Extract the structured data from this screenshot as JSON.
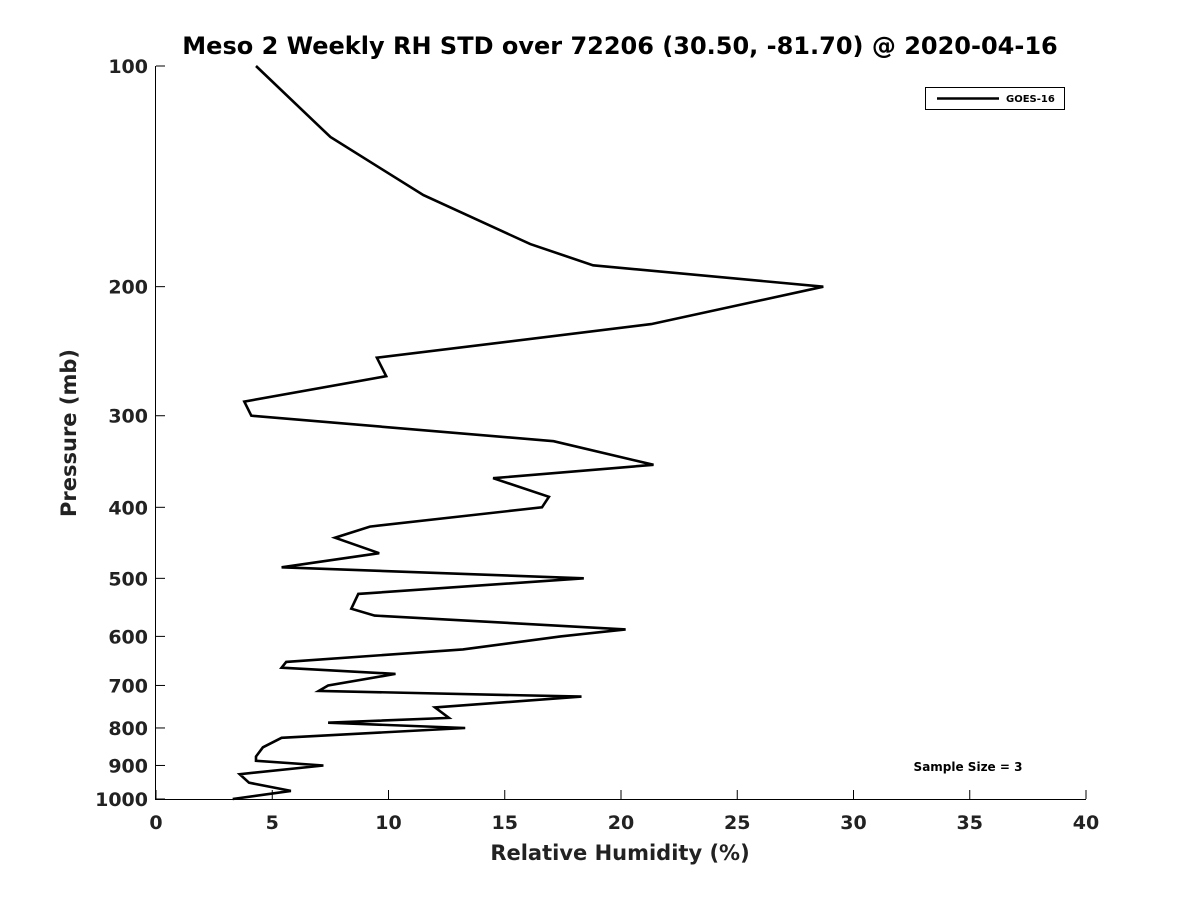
{
  "chart_data": {
    "type": "line",
    "title": "Meso 2 Weekly RH STD over 72206 (30.50, -81.70) @ 2020-04-16",
    "xlabel": "Relative Humidity (%)",
    "ylabel": "Pressure (mb)",
    "xlim": [
      0,
      40
    ],
    "ylim": [
      100,
      1000
    ],
    "y_scale": "log",
    "y_reversed": true,
    "x_ticks": [
      "0",
      "5",
      "10",
      "15",
      "20",
      "25",
      "30",
      "35",
      "40"
    ],
    "y_ticks": [
      "100",
      "200",
      "300",
      "400",
      "500",
      "600",
      "700",
      "800",
      "900",
      "1000"
    ],
    "grid": false,
    "legend_position": "top-right",
    "annotation": "Sample Size = 3",
    "series": [
      {
        "name": "GOES-16",
        "color": "#000000",
        "points": [
          [
            4.3,
            100
          ],
          [
            7.5,
            125
          ],
          [
            11.5,
            150
          ],
          [
            16.1,
            175
          ],
          [
            18.8,
            187
          ],
          [
            28.7,
            200
          ],
          [
            21.3,
            225
          ],
          [
            9.5,
            250
          ],
          [
            9.9,
            265
          ],
          [
            3.8,
            287
          ],
          [
            4.1,
            300
          ],
          [
            17.1,
            325
          ],
          [
            21.4,
            350
          ],
          [
            14.5,
            365
          ],
          [
            16.9,
            387
          ],
          [
            16.6,
            400
          ],
          [
            9.2,
            425
          ],
          [
            7.7,
            440
          ],
          [
            9.6,
            462
          ],
          [
            5.4,
            483
          ],
          [
            18.4,
            500
          ],
          [
            8.7,
            525
          ],
          [
            8.4,
            550
          ],
          [
            9.4,
            562
          ],
          [
            20.2,
            587
          ],
          [
            17.4,
            600
          ],
          [
            13.2,
            625
          ],
          [
            5.6,
            650
          ],
          [
            5.4,
            662
          ],
          [
            10.3,
            675
          ],
          [
            7.4,
            700
          ],
          [
            7.0,
            712
          ],
          [
            18.3,
            725
          ],
          [
            12.0,
            750
          ],
          [
            12.6,
            775
          ],
          [
            7.4,
            787
          ],
          [
            13.3,
            800
          ],
          [
            5.4,
            825
          ],
          [
            4.6,
            850
          ],
          [
            4.3,
            875
          ],
          [
            4.3,
            887
          ],
          [
            7.2,
            900
          ],
          [
            3.6,
            925
          ],
          [
            4.0,
            950
          ],
          [
            5.8,
            975
          ],
          [
            3.3,
            1000
          ]
        ]
      }
    ]
  }
}
